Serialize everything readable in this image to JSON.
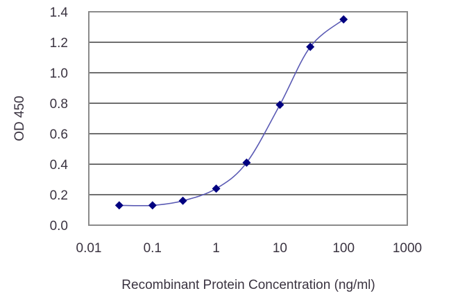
{
  "chart_data": {
    "type": "line",
    "title": "",
    "xlabel": "Recombinant Protein Concentration (ng/ml)",
    "ylabel": "OD 450",
    "xscale": "log",
    "xlim": [
      0.01,
      1000
    ],
    "ylim": [
      0.0,
      1.4
    ],
    "x_ticks": [
      "0.01",
      "0.1",
      "1",
      "10",
      "100",
      "1000"
    ],
    "y_ticks": [
      "0.0",
      "0.2",
      "0.4",
      "0.6",
      "0.8",
      "1.0",
      "1.2",
      "1.4"
    ],
    "grid": "horizontal",
    "legend": null,
    "series": [
      {
        "name": "OD 450",
        "color": "#000080",
        "line_color": "#5a5ab4",
        "marker": "diamond",
        "x": [
          0.03,
          0.1,
          0.3,
          1,
          3,
          10,
          30,
          100
        ],
        "values": [
          0.13,
          0.13,
          0.16,
          0.24,
          0.41,
          0.79,
          1.17,
          1.35
        ]
      }
    ]
  },
  "colors": {
    "grid": "#6e6e6e",
    "axis": "#555555",
    "text": "#3a3340",
    "marker": "#000080",
    "curve": "#5a5ab4"
  }
}
